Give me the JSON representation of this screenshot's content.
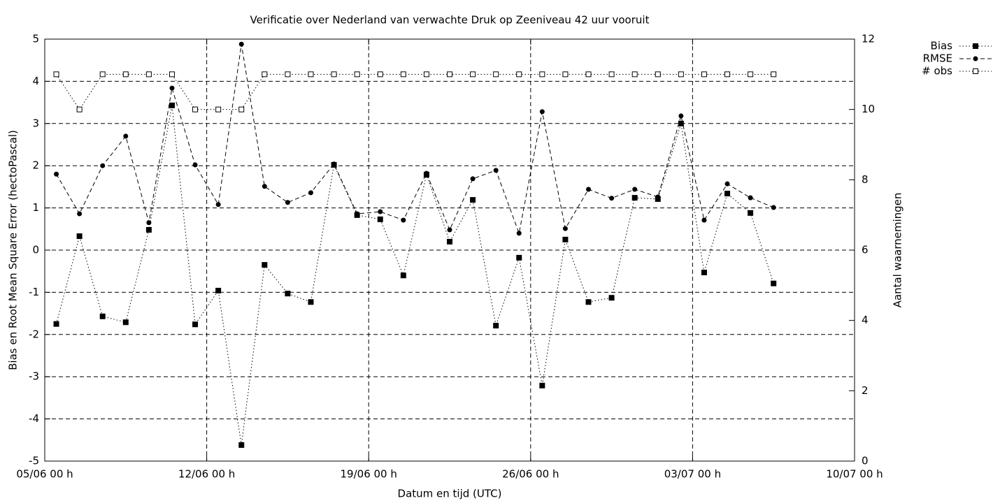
{
  "chart_data": {
    "type": "line",
    "title": "Verificatie over Nederland van verwachte Druk op Zeeniveau 42 uur vooruit",
    "xlabel": "Datum en tijd (UTC)",
    "ylabel": "Bias en Root Mean Square Error (hectoPascal)",
    "y2label": "Aantal waarnemingen",
    "x": [
      "05/06 12 h",
      "06/06 12 h",
      "07/06 12 h",
      "08/06 12 h",
      "09/06 12 h",
      "10/06 12 h",
      "11/06 12 h",
      "12/06 12 h",
      "13/06 12 h",
      "14/06 12 h",
      "15/06 12 h",
      "16/06 12 h",
      "17/06 12 h",
      "18/06 12 h",
      "19/06 12 h",
      "20/06 12 h",
      "21/06 12 h",
      "22/06 12 h",
      "23/06 12 h",
      "24/06 12 h",
      "25/06 12 h",
      "26/06 12 h",
      "27/06 12 h",
      "28/06 12 h",
      "29/06 12 h",
      "30/06 12 h",
      "01/07 12 h",
      "02/07 12 h",
      "03/07 12 h",
      "04/07 12 h",
      "05/07 12 h",
      "06/07 12 h"
    ],
    "xlim": [
      "05/06 00 h",
      "10/07 00 h"
    ],
    "xticks": [
      "05/06 00 h",
      "12/06 00 h",
      "19/06 00 h",
      "26/06 00 h",
      "03/07 00 h",
      "10/07 00 h"
    ],
    "ylim": [
      -5,
      5
    ],
    "yticks": [
      -5,
      -4,
      -3,
      -2,
      -1,
      0,
      1,
      2,
      3,
      4,
      5
    ],
    "y2lim": [
      0,
      12
    ],
    "y2ticks": [
      0,
      2,
      4,
      6,
      8,
      10,
      12
    ],
    "grid": true,
    "legend": "outside-top-right",
    "series": [
      {
        "name": "Bias",
        "color": "#000000",
        "dash": "dotted",
        "marker": "filled-square",
        "values": [
          -1.75,
          0.33,
          -1.57,
          -1.71,
          0.48,
          3.43,
          -1.76,
          -0.96,
          -4.62,
          -0.35,
          -1.03,
          -1.23,
          2.02,
          0.83,
          0.73,
          -0.6,
          1.79,
          0.2,
          1.19,
          -1.79,
          -0.18,
          -3.21,
          0.25,
          -1.23,
          -1.13,
          1.24,
          1.21,
          3.0,
          -0.53,
          1.34,
          0.88,
          -0.79
        ]
      },
      {
        "name": "RMSE",
        "color": "#000000",
        "dash": "dashed",
        "marker": "filled-circle",
        "values": [
          1.8,
          0.86,
          2.0,
          2.7,
          0.65,
          3.84,
          2.02,
          1.08,
          4.88,
          1.51,
          1.13,
          1.36,
          2.04,
          0.86,
          0.91,
          0.71,
          1.82,
          0.48,
          1.69,
          1.89,
          0.4,
          3.28,
          0.51,
          1.44,
          1.23,
          1.44,
          1.26,
          3.18,
          0.71,
          1.57,
          1.24,
          1.01
        ]
      },
      {
        "name": "# obs",
        "color": "#000000",
        "dash": "dotted",
        "marker": "open-square",
        "axis": "y2",
        "values": [
          11,
          10,
          11,
          11,
          11,
          11,
          10,
          10,
          10,
          11,
          11,
          11,
          11,
          11,
          11,
          11,
          11,
          11,
          11,
          11,
          11,
          11,
          11,
          11,
          11,
          11,
          11,
          11,
          11,
          11,
          11,
          11
        ]
      }
    ]
  }
}
